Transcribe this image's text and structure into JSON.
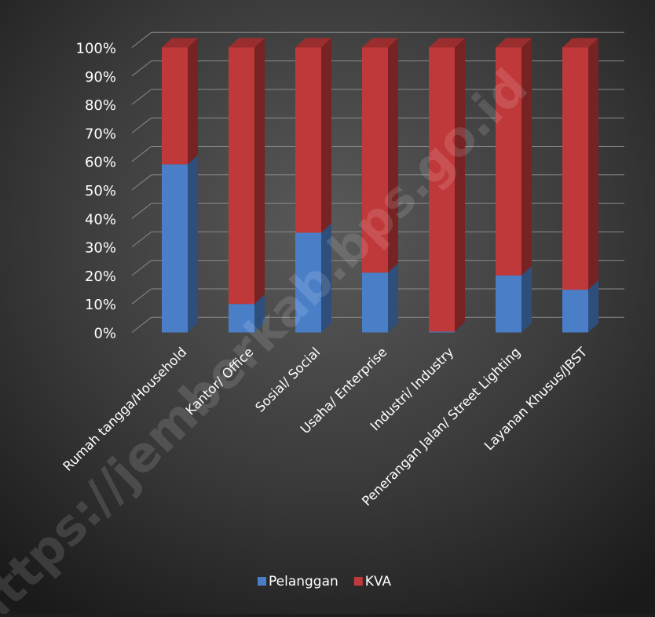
{
  "chart_data": {
    "type": "bar",
    "stacking": "percent",
    "style": "3d-column",
    "categories": [
      "Rumah tangga/Household",
      "Kantor/ Office",
      "Sosial/ Social",
      "Usaha/ Enterprise",
      "Industri/ Industry",
      "Penerangan  Jalan/ Street Lighting",
      "Layanan Khusus/JBST"
    ],
    "series": [
      {
        "name": "Pelanggan",
        "color": "#4a7fc8",
        "values": [
          59,
          10,
          35,
          21,
          0.3,
          20,
          15
        ]
      },
      {
        "name": "KVA",
        "color": "#c0393a",
        "values": [
          41,
          90,
          65,
          79,
          99.7,
          80,
          85
        ]
      }
    ],
    "yticks": [
      "0%",
      "10%",
      "20%",
      "30%",
      "40%",
      "50%",
      "60%",
      "70%",
      "80%",
      "90%",
      "100%"
    ],
    "ylim": [
      0,
      100
    ],
    "legend_position": "bottom",
    "grid": true,
    "watermark": "https://jemberkab.bps.go.id"
  }
}
